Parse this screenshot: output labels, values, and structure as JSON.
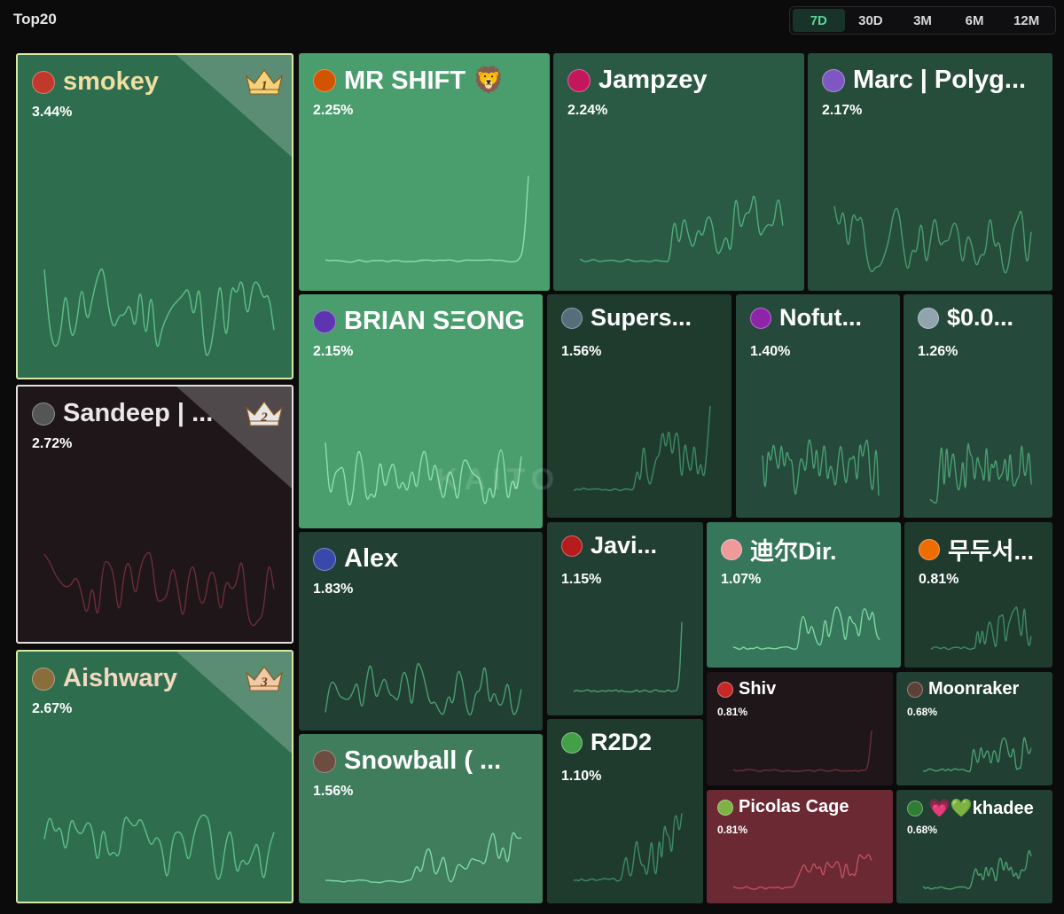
{
  "header": {
    "title": "Top20"
  },
  "tabs": [
    {
      "label": "7D",
      "active": true
    },
    {
      "label": "30D",
      "active": false
    },
    {
      "label": "3M",
      "active": false
    },
    {
      "label": "6M",
      "active": false
    },
    {
      "label": "12M",
      "active": false
    }
  ],
  "watermark": "KAITO",
  "colors": {
    "green_border": "#d9e8a6",
    "red_bg": "#1f161a",
    "red_line": "#7a3440",
    "green_line": "#7fd9a6"
  },
  "tiles": [
    {
      "name": "smokey",
      "percent": "3.44%",
      "rank": "1",
      "avatar_icon": "red-cap-avatar-icon",
      "avatar_color": "#c0392b",
      "bg": "#2e6e4f",
      "line": "#5fbf8a",
      "seed": 11,
      "flat": 0
    },
    {
      "name": "Sandeep | ...",
      "percent": "2.72%",
      "rank": "2",
      "avatar_icon": "person-avatar-icon",
      "avatar_color": "#555555",
      "bg": "#1f161a",
      "line": "#6b2e38",
      "seed": 23,
      "flat": 0
    },
    {
      "name": "Aishwary",
      "percent": "2.67%",
      "rank": "3",
      "avatar_icon": "person-avatar-icon",
      "avatar_color": "#8a6d3b",
      "bg": "#2e6e4f",
      "line": "#5fbf8a",
      "seed": 37,
      "flat": 0
    },
    {
      "name": "MR SHIFT 🦁",
      "percent": "2.25%",
      "avatar_icon": "mushroom-avatar-icon",
      "avatar_color": "#d35400",
      "bg": "#4a9e6e",
      "line": "#8be0b0",
      "seed": 5,
      "flat": 1
    },
    {
      "name": "Jampzey",
      "percent": "2.24%",
      "avatar_icon": "cartoon-avatar-icon",
      "avatar_color": "#c2185b",
      "bg": "#2a5a43",
      "line": "#4fae7c",
      "seed": 17,
      "flat": 2
    },
    {
      "name": "Marc | Polyg...",
      "percent": "2.17%",
      "avatar_icon": "robot-avatar-icon",
      "avatar_color": "#7e57c2",
      "bg": "#264c3a",
      "line": "#4a9e72",
      "seed": 29,
      "flat": 0
    },
    {
      "name": "BRIAN SΞONG",
      "percent": "2.15%",
      "avatar_icon": "sunglasses-avatar-icon",
      "avatar_color": "#5e35b1",
      "bg": "#4a9e6e",
      "line": "#8be0b0",
      "seed": 41,
      "flat": 0
    },
    {
      "name": "Supers...",
      "percent": "1.56%",
      "avatar_icon": "planet-avatar-icon",
      "avatar_color": "#546e7a",
      "bg": "#1e3b2e",
      "line": "#3f8a64",
      "seed": 53,
      "flat": 2
    },
    {
      "name": "Nofut...",
      "percent": "1.40%",
      "avatar_icon": "cartoon-avatar-icon",
      "avatar_color": "#8e24aa",
      "bg": "#25493a",
      "line": "#4a9e72",
      "seed": 61,
      "flat": 0
    },
    {
      "name": "$0.0...",
      "percent": "1.26%",
      "avatar_icon": "duck-avatar-icon",
      "avatar_color": "#90a4ae",
      "bg": "#25493a",
      "line": "#4a9e72",
      "seed": 71,
      "flat": 0
    },
    {
      "name": "Alex",
      "percent": "1.83%",
      "avatar_icon": "person-avatar-icon",
      "avatar_color": "#3949ab",
      "bg": "#213f32",
      "line": "#4a9e72",
      "seed": 83,
      "flat": 0
    },
    {
      "name": "Snowball ( ...",
      "percent": "1.56%",
      "avatar_icon": "character-avatar-icon",
      "avatar_color": "#6d4c41",
      "bg": "#3f7d5d",
      "line": "#7fd9a6",
      "seed": 97,
      "flat": 2
    },
    {
      "name": "Javi...",
      "percent": "1.15%",
      "avatar_icon": "person-avatar-icon",
      "avatar_color": "#b71c1c",
      "bg": "#213f32",
      "line": "#4a9e72",
      "seed": 101,
      "flat": 1
    },
    {
      "name": "R2D2",
      "percent": "1.10%",
      "avatar_icon": "frog-avatar-icon",
      "avatar_color": "#43a047",
      "bg": "#1e3b2e",
      "line": "#3f8a64",
      "seed": 113,
      "flat": 2
    },
    {
      "name": "迪尔Dir.",
      "percent": "1.07%",
      "avatar_icon": "cat-avatar-icon",
      "avatar_color": "#ef9a9a",
      "bg": "#36765a",
      "line": "#7fd9a6",
      "seed": 127,
      "flat": 2
    },
    {
      "name": "무두서...",
      "percent": "0.81%",
      "avatar_icon": "fox-avatar-icon",
      "avatar_color": "#ef6c00",
      "bg": "#1e3b2e",
      "line": "#3f8a64",
      "seed": 131,
      "flat": 2
    },
    {
      "name": "Shiv",
      "percent": "0.81%",
      "avatar_icon": "red-cap-avatar-icon",
      "avatar_color": "#c62828",
      "bg": "#1f161a",
      "line": "#6b2e38",
      "seed": 139,
      "flat": 1
    },
    {
      "name": "Moonraker",
      "percent": "0.68%",
      "avatar_icon": "character-avatar-icon",
      "avatar_color": "#5d4037",
      "bg": "#213f32",
      "line": "#4a9e72",
      "seed": 149,
      "flat": 2
    },
    {
      "name": "Picolas Cage",
      "percent": "0.81%",
      "avatar_icon": "person-avatar-icon",
      "avatar_color": "#7cb342",
      "bg": "#6b2933",
      "line": "#c05060",
      "seed": 157,
      "flat": 2
    },
    {
      "name": "💗💚khadee",
      "percent": "0.68%",
      "avatar_icon": "frog-avatar-icon",
      "avatar_color": "#2e7d32",
      "bg": "#213f32",
      "line": "#4a9e72",
      "seed": 163,
      "flat": 2
    }
  ]
}
